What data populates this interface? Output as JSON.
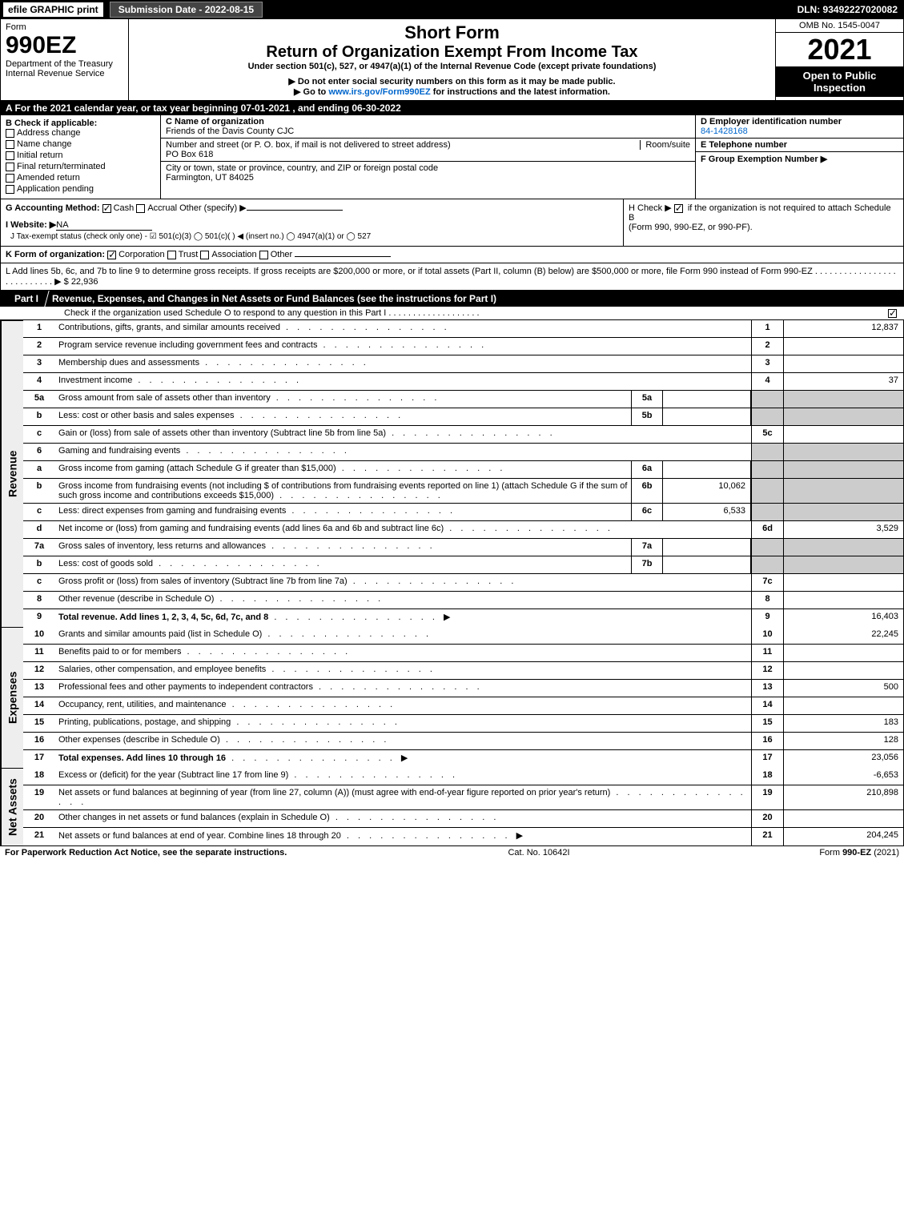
{
  "topbar": {
    "efile": "efile GRAPHIC print",
    "submission": "Submission Date - 2022-08-15",
    "dln": "DLN: 93492227020082"
  },
  "header": {
    "form": "Form",
    "num": "990EZ",
    "dept": "Department of the Treasury",
    "irs": "Internal Revenue Service",
    "title1": "Short Form",
    "title2": "Return of Organization Exempt From Income Tax",
    "sub": "Under section 501(c), 527, or 4947(a)(1) of the Internal Revenue Code (except private foundations)",
    "do_not": "▶ Do not enter social security numbers on this form as it may be made public.",
    "goto": "▶ Go to www.irs.gov/Form990EZ for instructions and the latest information.",
    "omb": "OMB No. 1545-0047",
    "year": "2021",
    "open": "Open to Public Inspection"
  },
  "rowA": "A  For the 2021 calendar year, or tax year beginning 07-01-2021 , and ending 06-30-2022",
  "colB": {
    "hdr": "B  Check if applicable:",
    "opts": [
      "Address change",
      "Name change",
      "Initial return",
      "Final return/terminated",
      "Amended return",
      "Application pending"
    ]
  },
  "colC": {
    "name_lbl": "C Name of organization",
    "name": "Friends of the Davis County CJC",
    "addr_lbl": "Number and street (or P. O. box, if mail is not delivered to street address)",
    "room": "Room/suite",
    "addr": "PO Box 618",
    "city_lbl": "City or town, state or province, country, and ZIP or foreign postal code",
    "city": "Farmington, UT  84025"
  },
  "colD": {
    "ein_lbl": "D Employer identification number",
    "ein": "84-1428168",
    "tel_lbl": "E Telephone number",
    "grp_lbl": "F Group Exemption Number   ▶"
  },
  "rowG": {
    "lbl": "G Accounting Method:",
    "cash": "Cash",
    "accrual": "Accrual",
    "other": "Other (specify) ▶"
  },
  "rowH": {
    "txt1": "H  Check ▶ ",
    "txt2": " if the organization is not required to attach Schedule B",
    "txt3": "(Form 990, 990-EZ, or 990-PF)."
  },
  "rowI": {
    "lbl": "I Website: ▶",
    "val": "NA"
  },
  "rowJ": "J Tax-exempt status (check only one) - ☑ 501(c)(3)  ◯ 501(c)(  ) ◀ (insert no.)  ◯ 4947(a)(1) or  ◯ 527",
  "rowK": {
    "lbl": "K Form of organization:",
    "opts": [
      "Corporation",
      "Trust",
      "Association",
      "Other"
    ]
  },
  "rowL": {
    "txt": "L Add lines 5b, 6c, and 7b to line 9 to determine gross receipts. If gross receipts are $200,000 or more, or if total assets (Part II, column (B) below) are $500,000 or more, file Form 990 instead of Form 990-EZ",
    "amt": "▶ $ 22,936"
  },
  "part1": {
    "tab": "Part I",
    "title": "Revenue, Expenses, and Changes in Net Assets or Fund Balances (see the instructions for Part I)",
    "sub": "Check if the organization used Schedule O to respond to any question in this Part I"
  },
  "sides": {
    "rev": "Revenue",
    "exp": "Expenses",
    "net": "Net Assets"
  },
  "revenue": [
    {
      "n": "1",
      "d": "Contributions, gifts, grants, and similar amounts received",
      "num": "1",
      "val": "12,837"
    },
    {
      "n": "2",
      "d": "Program service revenue including government fees and contracts",
      "num": "2",
      "val": ""
    },
    {
      "n": "3",
      "d": "Membership dues and assessments",
      "num": "3",
      "val": ""
    },
    {
      "n": "4",
      "d": "Investment income",
      "num": "4",
      "val": "37"
    },
    {
      "n": "5a",
      "d": "Gross amount from sale of assets other than inventory",
      "sub": "5a",
      "subval": "",
      "shade": true
    },
    {
      "n": "b",
      "d": "Less: cost or other basis and sales expenses",
      "sub": "5b",
      "subval": "",
      "shade": true
    },
    {
      "n": "c",
      "d": "Gain or (loss) from sale of assets other than inventory (Subtract line 5b from line 5a)",
      "num": "5c",
      "val": ""
    },
    {
      "n": "6",
      "d": "Gaming and fundraising events",
      "shadeonly": true
    },
    {
      "n": "a",
      "d": "Gross income from gaming (attach Schedule G if greater than $15,000)",
      "sub": "6a",
      "subval": "",
      "shade": true
    },
    {
      "n": "b",
      "d": "Gross income from fundraising events (not including $                      of contributions from fundraising events reported on line 1) (attach Schedule G if the sum of such gross income and contributions exceeds $15,000)",
      "sub": "6b",
      "subval": "10,062",
      "shade": true
    },
    {
      "n": "c",
      "d": "Less: direct expenses from gaming and fundraising events",
      "sub": "6c",
      "subval": "6,533",
      "shade": true
    },
    {
      "n": "d",
      "d": "Net income or (loss) from gaming and fundraising events (add lines 6a and 6b and subtract line 6c)",
      "num": "6d",
      "val": "3,529"
    },
    {
      "n": "7a",
      "d": "Gross sales of inventory, less returns and allowances",
      "sub": "7a",
      "subval": "",
      "shade": true
    },
    {
      "n": "b",
      "d": "Less: cost of goods sold",
      "sub": "7b",
      "subval": "",
      "shade": true
    },
    {
      "n": "c",
      "d": "Gross profit or (loss) from sales of inventory (Subtract line 7b from line 7a)",
      "num": "7c",
      "val": ""
    },
    {
      "n": "8",
      "d": "Other revenue (describe in Schedule O)",
      "num": "8",
      "val": ""
    },
    {
      "n": "9",
      "d": "Total revenue. Add lines 1, 2, 3, 4, 5c, 6d, 7c, and 8",
      "num": "9",
      "val": "16,403",
      "bold": true,
      "arrow": true
    }
  ],
  "expenses": [
    {
      "n": "10",
      "d": "Grants and similar amounts paid (list in Schedule O)",
      "num": "10",
      "val": "22,245"
    },
    {
      "n": "11",
      "d": "Benefits paid to or for members",
      "num": "11",
      "val": ""
    },
    {
      "n": "12",
      "d": "Salaries, other compensation, and employee benefits",
      "num": "12",
      "val": ""
    },
    {
      "n": "13",
      "d": "Professional fees and other payments to independent contractors",
      "num": "13",
      "val": "500"
    },
    {
      "n": "14",
      "d": "Occupancy, rent, utilities, and maintenance",
      "num": "14",
      "val": ""
    },
    {
      "n": "15",
      "d": "Printing, publications, postage, and shipping",
      "num": "15",
      "val": "183"
    },
    {
      "n": "16",
      "d": "Other expenses (describe in Schedule O)",
      "num": "16",
      "val": "128"
    },
    {
      "n": "17",
      "d": "Total expenses. Add lines 10 through 16",
      "num": "17",
      "val": "23,056",
      "bold": true,
      "arrow": true
    }
  ],
  "netassets": [
    {
      "n": "18",
      "d": "Excess or (deficit) for the year (Subtract line 17 from line 9)",
      "num": "18",
      "val": "-6,653"
    },
    {
      "n": "19",
      "d": "Net assets or fund balances at beginning of year (from line 27, column (A)) (must agree with end-of-year figure reported on prior year's return)",
      "num": "19",
      "val": "210,898"
    },
    {
      "n": "20",
      "d": "Other changes in net assets or fund balances (explain in Schedule O)",
      "num": "20",
      "val": ""
    },
    {
      "n": "21",
      "d": "Net assets or fund balances at end of year. Combine lines 18 through 20",
      "num": "21",
      "val": "204,245",
      "arrow": true
    }
  ],
  "footer": {
    "f1": "For Paperwork Reduction Act Notice, see the separate instructions.",
    "f2": "Cat. No. 10642I",
    "f3a": "Form ",
    "f3b": "990-EZ",
    "f3c": " (2021)"
  }
}
